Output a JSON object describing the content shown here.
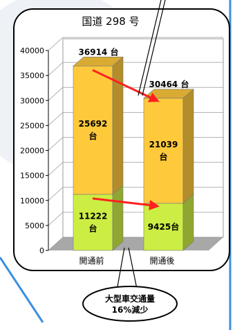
{
  "chart_data": {
    "type": "bar",
    "stacked": true,
    "title": "国道 298 号",
    "categories": [
      "開通前",
      "開通後"
    ],
    "series": [
      {
        "name": "",
        "values": [
          11222,
          9425
        ],
        "labels": [
          "11222\n台",
          "9425台"
        ],
        "color": "#ccee44"
      },
      {
        "name": "",
        "values": [
          25692,
          21039
        ],
        "labels": [
          "25692\n台",
          "21039\n台"
        ],
        "color": "#ffc93c"
      }
    ],
    "totals": [
      36914,
      30464
    ],
    "total_labels": [
      "36914 台",
      "30464 台"
    ],
    "ylim": [
      0,
      40000
    ],
    "yticks": [
      0,
      5000,
      10000,
      15000,
      20000,
      25000,
      30000,
      35000,
      40000
    ],
    "grid": true,
    "annotation": {
      "line1": "大型車交通量",
      "line2": "16%減少"
    }
  }
}
